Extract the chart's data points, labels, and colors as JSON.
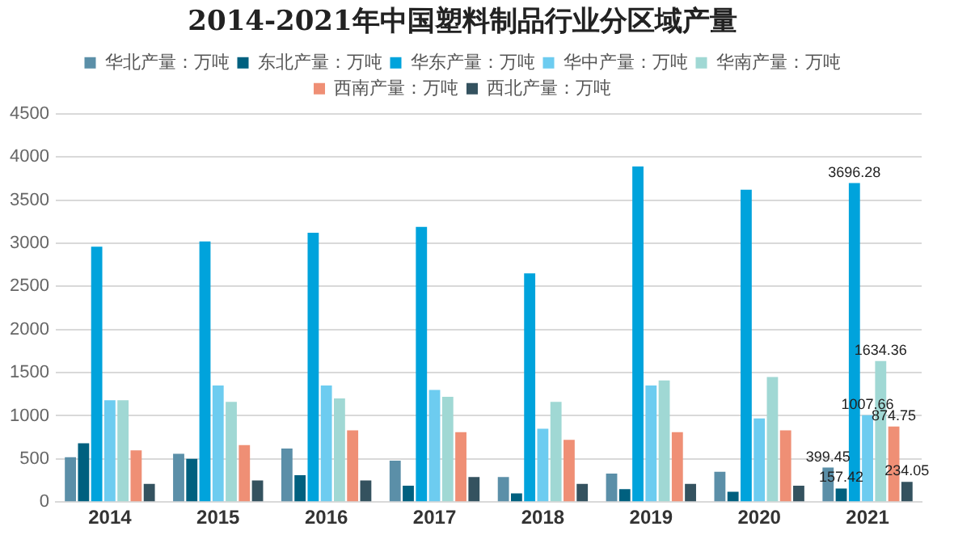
{
  "chart_data": {
    "type": "bar",
    "title": "2014-2021年中国塑料制品行业分区域产量",
    "categories": [
      "2014",
      "2015",
      "2016",
      "2017",
      "2018",
      "2019",
      "2020",
      "2021"
    ],
    "series": [
      {
        "name": "华北产量：万吨",
        "color": "#5b8fa8",
        "values": [
          520,
          560,
          620,
          480,
          290,
          330,
          350,
          399.45
        ],
        "value_labels": [
          null,
          null,
          null,
          null,
          null,
          null,
          null,
          "399.45"
        ]
      },
      {
        "name": "东北产量：万吨",
        "color": "#00607f",
        "values": [
          680,
          500,
          310,
          190,
          100,
          150,
          120,
          157.42
        ],
        "value_labels": [
          null,
          null,
          null,
          null,
          null,
          null,
          null,
          "157.42"
        ]
      },
      {
        "name": "华东产量：万吨",
        "color": "#00a3dc",
        "values": [
          2960,
          3020,
          3120,
          3190,
          2650,
          3890,
          3620,
          3696.28
        ],
        "value_labels": [
          null,
          null,
          null,
          null,
          null,
          null,
          null,
          "3696.28"
        ]
      },
      {
        "name": "华中产量：万吨",
        "color": "#6dccf0",
        "values": [
          1180,
          1350,
          1350,
          1300,
          850,
          1350,
          970,
          1007.66
        ],
        "value_labels": [
          null,
          null,
          null,
          null,
          null,
          null,
          null,
          "1007.66"
        ]
      },
      {
        "name": "华南产量：万吨",
        "color": "#a0d8d4",
        "values": [
          1180,
          1160,
          1200,
          1220,
          1160,
          1410,
          1450,
          1634.36
        ],
        "value_labels": [
          null,
          null,
          null,
          null,
          null,
          null,
          null,
          "1634.36"
        ]
      },
      {
        "name": "西南产量：万吨",
        "color": "#ef8f75",
        "values": [
          600,
          660,
          830,
          810,
          720,
          810,
          830,
          874.75
        ],
        "value_labels": [
          null,
          null,
          null,
          null,
          null,
          null,
          null,
          "874.75"
        ]
      },
      {
        "name": "西北产量：万吨",
        "color": "#34525f",
        "values": [
          210,
          250,
          250,
          290,
          210,
          210,
          190,
          234.05
        ],
        "value_labels": [
          null,
          null,
          null,
          null,
          null,
          null,
          null,
          "234.05"
        ]
      }
    ],
    "ylim": [
      0,
      4500
    ],
    "yticks": [
      0,
      500,
      1000,
      1500,
      2000,
      2500,
      3000,
      3500,
      4000,
      4500
    ],
    "grid": "y",
    "legend": "top"
  }
}
